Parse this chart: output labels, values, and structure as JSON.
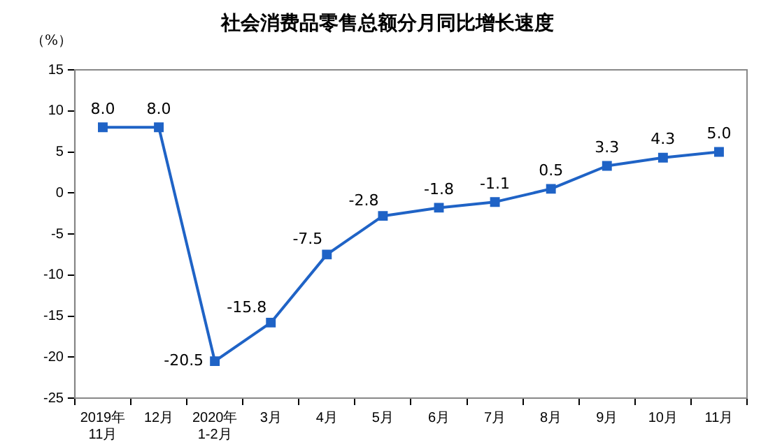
{
  "chart_data": {
    "type": "line",
    "title": "社会消费品零售总额分月同比增长速度",
    "ylabel": "（%）",
    "categories": [
      "2019年\n11月",
      "12月",
      "2020年\n1-2月",
      "3月",
      "4月",
      "5月",
      "6月",
      "7月",
      "8月",
      "9月",
      "10月",
      "11月"
    ],
    "series": [
      {
        "color": "#1f63c6",
        "values": [
          8.0,
          8.0,
          -20.5,
          -15.8,
          -7.5,
          -2.8,
          -1.8,
          -1.1,
          0.5,
          3.3,
          4.3,
          5.0
        ],
        "value_labels": [
          "8.0",
          "8.0",
          "-20.5",
          "-15.8",
          "-7.5",
          "-2.8",
          "-1.8",
          "-1.1",
          "0.5",
          "3.3",
          "4.3",
          "5.0"
        ]
      }
    ],
    "ylim": [
      -25,
      15
    ],
    "yticks": [
      -25,
      -20,
      -15,
      -10,
      -5,
      0,
      5,
      10,
      15
    ],
    "grid": false,
    "legend": false,
    "marker": "square",
    "line_style": "solid"
  }
}
